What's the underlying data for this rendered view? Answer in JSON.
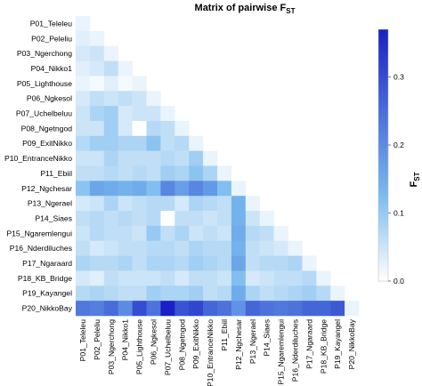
{
  "chart_data": {
    "type": "heatmap",
    "title": "Matrix of pairwise F",
    "title_subscript": "ST",
    "legend_title": "F",
    "legend_subscript": "ST",
    "legend_ticks": [
      {
        "value": 0.0,
        "label": "0.0"
      },
      {
        "value": 0.1,
        "label": "0.1"
      },
      {
        "value": 0.2,
        "label": "0.2"
      },
      {
        "value": 0.3,
        "label": "0.3"
      }
    ],
    "value_range": [
      0,
      0.37
    ],
    "color_low": "#ffffff",
    "color_high": "#1a20c4",
    "labels": [
      "P01_Teleleu",
      "P02_Peleliu",
      "P03_Ngerchong",
      "P04_Nikko1",
      "P05_Lighthouse",
      "P06_Ngkesol",
      "P07_Uchelbeluu",
      "P08_Ngetngod",
      "P09_ExitNikko",
      "P10_EntranceNikko",
      "P11_Ebiil",
      "P12_Ngchesar",
      "P13_Ngerael",
      "P14_Siaes",
      "P15_Ngaremlengui",
      "P16_Nderdiluches",
      "P17_Ngaraard",
      "P18_KB_Bridge",
      "P19_Kayangel",
      "P20_NikkoBay"
    ],
    "matrix_lower": [
      [],
      [
        0.03
      ],
      [
        0.04,
        0.05
      ],
      [
        0.03,
        0.04,
        0.06
      ],
      [
        0.02,
        0.01,
        0.03,
        0.01
      ],
      [
        0.04,
        0.06,
        0.05,
        0.06,
        0.05
      ],
      [
        0.05,
        0.08,
        0.09,
        0.04,
        0.05,
        0.05
      ],
      [
        0.05,
        0.05,
        0.09,
        0.04,
        0.0,
        0.07,
        0.06
      ],
      [
        0.07,
        0.09,
        0.09,
        0.08,
        0.08,
        0.11,
        0.06,
        0.07
      ],
      [
        0.05,
        0.05,
        0.08,
        0.06,
        0.06,
        0.06,
        0.07,
        0.06,
        0.09
      ],
      [
        0.06,
        0.06,
        0.07,
        0.06,
        0.07,
        0.06,
        0.09,
        0.08,
        0.11,
        0.08
      ],
      [
        0.11,
        0.16,
        0.15,
        0.14,
        0.15,
        0.12,
        0.21,
        0.17,
        0.21,
        0.18,
        0.12
      ],
      [
        0.04,
        0.05,
        0.08,
        0.05,
        0.06,
        0.07,
        0.07,
        0.04,
        0.08,
        0.07,
        0.06,
        0.14
      ],
      [
        0.06,
        0.07,
        0.06,
        0.07,
        0.06,
        0.07,
        0.0,
        0.06,
        0.06,
        0.05,
        0.06,
        0.14,
        0.05
      ],
      [
        0.05,
        0.07,
        0.06,
        0.06,
        0.05,
        0.1,
        0.06,
        0.08,
        0.05,
        0.06,
        0.05,
        0.15,
        0.07,
        0.06
      ],
      [
        0.06,
        0.04,
        0.05,
        0.06,
        0.06,
        0.07,
        0.07,
        0.06,
        0.08,
        0.07,
        0.07,
        0.14,
        0.06,
        0.05,
        0.04
      ],
      [
        0.08,
        0.07,
        0.07,
        0.08,
        0.06,
        0.08,
        0.08,
        0.07,
        0.09,
        0.08,
        0.07,
        0.16,
        0.06,
        0.07,
        0.07,
        0.08
      ],
      [
        0.04,
        0.03,
        0.06,
        0.05,
        0.05,
        0.05,
        0.06,
        0.04,
        0.06,
        0.06,
        0.05,
        0.12,
        0.04,
        0.05,
        0.06,
        0.06,
        0.07
      ],
      [
        0.07,
        0.08,
        0.07,
        0.06,
        0.06,
        0.09,
        0.08,
        0.08,
        0.09,
        0.06,
        0.07,
        0.15,
        0.08,
        0.06,
        0.07,
        0.08,
        0.09,
        0.07
      ],
      [
        0.23,
        0.22,
        0.25,
        0.2,
        0.3,
        0.24,
        0.37,
        0.29,
        0.31,
        0.26,
        0.24,
        0.19,
        0.26,
        0.24,
        0.23,
        0.24,
        0.26,
        0.26,
        0.28
      ]
    ],
    "diagonal_value": 0.02
  }
}
